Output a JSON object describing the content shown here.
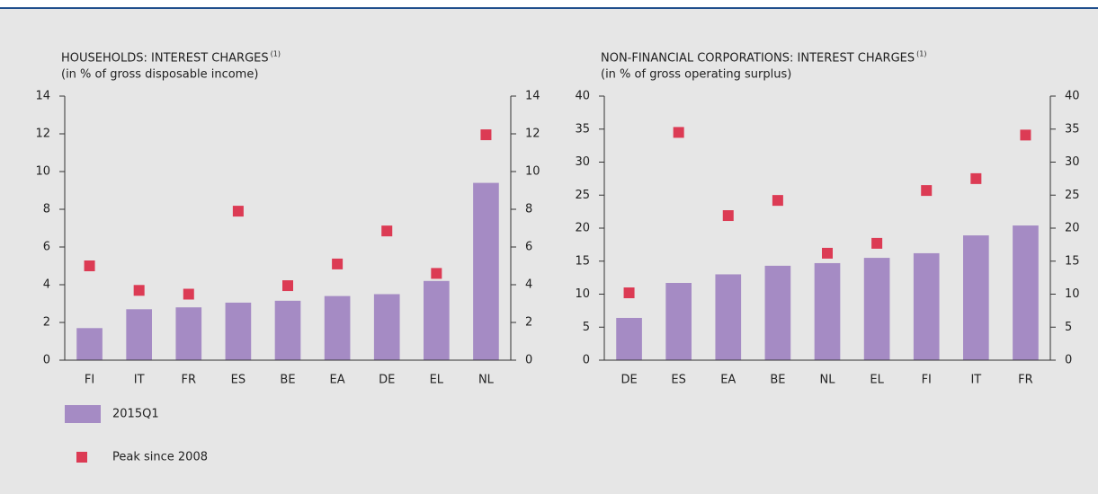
{
  "chart_data": [
    {
      "type": "bar",
      "title": "HOUSEHOLDS: INTEREST CHARGES",
      "title_note": "(1)",
      "subtitle": "(in % of gross disposable income)",
      "categories": [
        "FI",
        "IT",
        "FR",
        "ES",
        "BE",
        "EA",
        "DE",
        "EL",
        "NL"
      ],
      "series": [
        {
          "name": "2015Q1",
          "kind": "bar",
          "color": "#a58bc4",
          "values": [
            1.7,
            2.7,
            2.8,
            3.05,
            3.15,
            3.4,
            3.5,
            4.2,
            9.4
          ]
        },
        {
          "name": "Peak since 2008",
          "kind": "marker",
          "color": "#dc3b54",
          "values": [
            5.0,
            3.7,
            3.5,
            7.9,
            3.95,
            5.1,
            6.85,
            4.6,
            11.95
          ]
        }
      ],
      "ylim": [
        0,
        14
      ],
      "yticks": [
        0,
        2,
        4,
        6,
        8,
        10,
        12,
        14
      ],
      "mirror_y_axis": true
    },
    {
      "type": "bar",
      "title": "NON-FINANCIAL CORPORATIONS: INTEREST CHARGES",
      "title_note": "(1)",
      "subtitle": "(in % of gross operating surplus)",
      "categories": [
        "DE",
        "ES",
        "EA",
        "BE",
        "NL",
        "EL",
        "FI",
        "IT",
        "FR"
      ],
      "series": [
        {
          "kind": "bar",
          "color": "#a58bc4",
          "values": [
            6.4,
            11.7,
            13.0,
            14.3,
            14.7,
            15.5,
            16.2,
            18.9,
            20.4
          ]
        },
        {
          "kind": "marker",
          "color": "#dc3b54",
          "values": [
            10.2,
            34.5,
            21.9,
            24.2,
            16.2,
            17.7,
            25.7,
            27.5,
            34.1
          ]
        }
      ],
      "ylim": [
        0,
        40
      ],
      "yticks": [
        0,
        5,
        10,
        15,
        20,
        25,
        30,
        35,
        40
      ],
      "mirror_y_axis": true
    }
  ]
}
